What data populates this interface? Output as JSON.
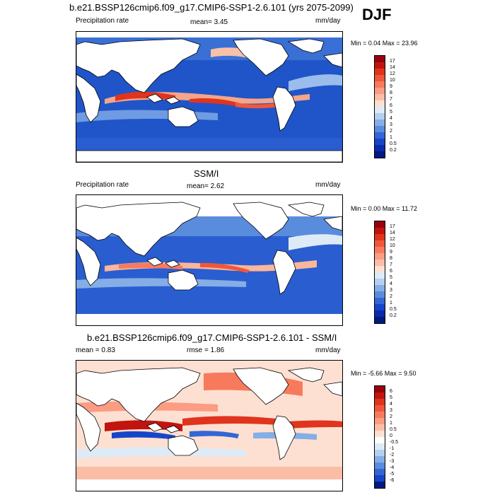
{
  "title": "b.e21.BSSP126cmip6.f09_g17.CMIP6-SSP1-2.6.101 (yrs 2075-2099)",
  "season": "DJF",
  "panels": [
    {
      "heading": "",
      "left_label": "Precipitation rate",
      "center_label": "mean=   3.45",
      "right_label": "mm/day",
      "minmax": "Min =   0.04 Max =   23.96",
      "colorbar_ticks": [
        "17",
        "14",
        "12",
        "10",
        "9",
        "8",
        "7",
        "6",
        "5",
        "4",
        "3",
        "2",
        "1",
        "0.5",
        "0.2"
      ],
      "colors": [
        "#99000d",
        "#c2140f",
        "#e0341e",
        "#f0573a",
        "#f87a5c",
        "#fb9c83",
        "#fcbda7",
        "#fde0d2",
        "#deebf7",
        "#b5cff0",
        "#85aee6",
        "#5a8cde",
        "#3466d6",
        "#1745c7",
        "#0a2aad",
        "#001a80"
      ]
    },
    {
      "heading": "SSM/I",
      "left_label": "Precipitation rate",
      "center_label": "mean=   2.62",
      "right_label": "mm/day",
      "minmax": "Min =   0.00 Max =   11.72",
      "colorbar_ticks": [
        "17",
        "14",
        "12",
        "10",
        "9",
        "8",
        "7",
        "6",
        "5",
        "4",
        "3",
        "2",
        "1",
        "0.5",
        "0.2"
      ],
      "colors": [
        "#99000d",
        "#c2140f",
        "#e0341e",
        "#f0573a",
        "#f87a5c",
        "#fb9c83",
        "#fcbda7",
        "#fde0d2",
        "#deebf7",
        "#b5cff0",
        "#85aee6",
        "#5a8cde",
        "#3466d6",
        "#1745c7",
        "#0a2aad",
        "#001a80"
      ]
    },
    {
      "heading": "b.e21.BSSP126cmip6.f09_g17.CMIP6-SSP1-2.6.101 - SSM/I",
      "left_label": "mean =   0.83",
      "center_label": "rmse =   1.86",
      "right_label": "mm/day",
      "minmax": "Min =  -5.66 Max =   9.50",
      "colorbar_ticks": [
        "6",
        "5",
        "4",
        "3",
        "2",
        "1",
        "0.5",
        "0",
        "-0.5",
        "-1",
        "-2",
        "-3",
        "-4",
        "-5",
        "-6"
      ],
      "colors": [
        "#99000d",
        "#c2140f",
        "#e0341e",
        "#f0573a",
        "#f87a5c",
        "#fb9c83",
        "#fcbda7",
        "#fde0d2",
        "#ffffff",
        "#deebf7",
        "#b5cff0",
        "#85aee6",
        "#5a8cde",
        "#3466d6",
        "#1745c7",
        "#001a80"
      ]
    }
  ]
}
